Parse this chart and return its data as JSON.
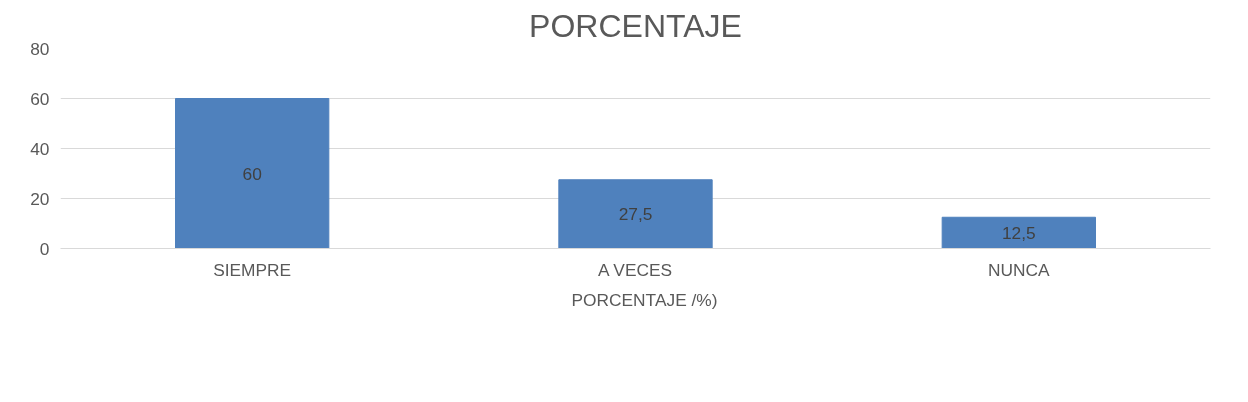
{
  "chart_data": {
    "type": "bar",
    "title": "PORCENTAJE",
    "categories": [
      "SIEMPRE",
      "A VECES",
      "NUNCA"
    ],
    "series": [
      {
        "name": "PORCENTAJE /%)",
        "color": "#4f81bd",
        "values": [
          60,
          27.5,
          12.5
        ]
      }
    ],
    "value_labels": [
      "60",
      "27,5",
      "12,5"
    ],
    "ylim": [
      0,
      80
    ],
    "yticks": [
      0,
      20,
      40,
      60,
      80
    ],
    "grid": "y",
    "legend": "bottom"
  }
}
